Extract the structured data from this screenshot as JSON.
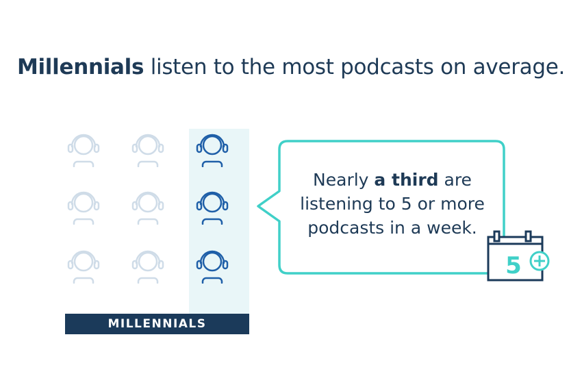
{
  "headline": {
    "bold": "Millennials",
    "rest": " listen to the most podcasts on average."
  },
  "bar_label": "MILLENNIALS",
  "callout": {
    "line1_prefix": "Nearly ",
    "line1_bold": "a third",
    "line1_suffix": " are",
    "line2": "listening to 5 or more",
    "line3": "podcasts in a week."
  },
  "calendar": {
    "number": "5"
  },
  "icons": {
    "type": "headphone-person-icon",
    "columns": 3,
    "rows": 3,
    "highlighted_column": 3
  },
  "colors": {
    "navy": "#1b3a5a",
    "highlight_icon": "#1f5fa8",
    "faded_icon": "#cfdce8",
    "teal": "#40d0c8",
    "column_bg": "#e9f6f8"
  }
}
